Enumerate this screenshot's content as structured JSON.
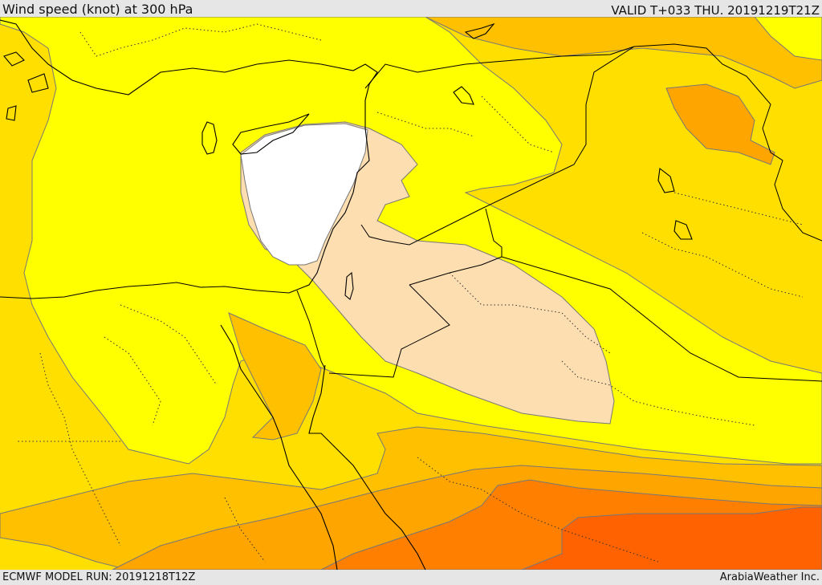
{
  "header": {
    "title": "Wind speed (knot) at 300 hPa",
    "valid": "VALID T+033 THU. 20191219T21Z"
  },
  "footer": {
    "model_run": "ECMWF MODEL RUN: 20191218T12Z",
    "credit": "ArabiaWeather Inc."
  },
  "colors": {
    "band_white": "#ffffff",
    "band_peach": "#fddeb0",
    "band_yellow": "#ffff00",
    "band_gold": "#ffdf00",
    "band_amber": "#ffc000",
    "band_orange": "#ffa500",
    "band_deep_orange": "#ff8000",
    "band_red_orange": "#ff6200"
  }
}
